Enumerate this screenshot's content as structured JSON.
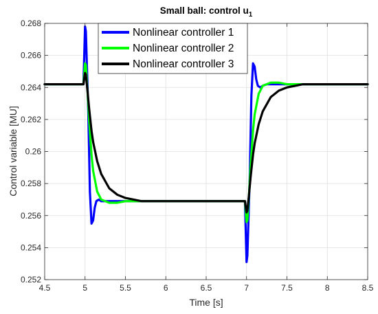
{
  "chart_data": {
    "type": "line",
    "title": "Small ball: control ",
    "title_var": "u",
    "title_sub": "1",
    "xlabel": "Time [s]",
    "ylabel": "Control variable [MU]",
    "xlim": [
      4.5,
      8.5
    ],
    "ylim": [
      0.252,
      0.268
    ],
    "xticks": [
      4.5,
      5,
      5.5,
      6,
      6.5,
      7,
      7.5,
      8,
      8.5
    ],
    "xtick_labels": [
      "4.5",
      "5",
      "5.5",
      "6",
      "6.5",
      "7",
      "7.5",
      "8",
      "8.5"
    ],
    "yticks": [
      0.252,
      0.254,
      0.256,
      0.258,
      0.26,
      0.262,
      0.264,
      0.266,
      0.268
    ],
    "ytick_labels": [
      "0.252",
      "0.254",
      "0.256",
      "0.258",
      "0.26",
      "0.262",
      "0.264",
      "0.266",
      "0.268"
    ],
    "grid": true,
    "legend_position": "top-left",
    "series": [
      {
        "name": "Nonlinear controller 1",
        "color": "#0000ff",
        "x": [
          4.5,
          4.98,
          5.0,
          5.01,
          5.04,
          5.06,
          5.08,
          5.1,
          5.12,
          5.14,
          5.17,
          5.2,
          5.25,
          5.3,
          5.5,
          6.0,
          6.5,
          6.98,
          7.0,
          7.01,
          7.04,
          7.06,
          7.08,
          7.1,
          7.12,
          7.14,
          7.17,
          7.2,
          7.25,
          7.3,
          7.5,
          8.0,
          8.5
        ],
        "y": [
          0.2642,
          0.2642,
          0.2678,
          0.2675,
          0.2625,
          0.2575,
          0.2555,
          0.2557,
          0.2565,
          0.2569,
          0.257,
          0.2569,
          0.2569,
          0.2569,
          0.2569,
          0.2569,
          0.2569,
          0.2569,
          0.2531,
          0.2535,
          0.2585,
          0.2635,
          0.2655,
          0.2653,
          0.2645,
          0.2641,
          0.264,
          0.2641,
          0.2642,
          0.2642,
          0.2642,
          0.2642,
          0.2642
        ]
      },
      {
        "name": "Nonlinear controller 2",
        "color": "#00ff00",
        "x": [
          4.5,
          4.98,
          5.0,
          5.01,
          5.03,
          5.05,
          5.08,
          5.1,
          5.15,
          5.2,
          5.3,
          5.4,
          5.5,
          5.6,
          6.0,
          6.5,
          6.98,
          7.0,
          7.01,
          7.03,
          7.05,
          7.08,
          7.1,
          7.15,
          7.2,
          7.3,
          7.4,
          7.5,
          7.6,
          8.0,
          8.5
        ],
        "y": [
          0.2642,
          0.2642,
          0.2655,
          0.2654,
          0.2638,
          0.262,
          0.2598,
          0.2588,
          0.2575,
          0.257,
          0.2568,
          0.2568,
          0.2569,
          0.2569,
          0.2569,
          0.2569,
          0.2569,
          0.2556,
          0.2557,
          0.2573,
          0.2591,
          0.2613,
          0.2623,
          0.2636,
          0.2641,
          0.2643,
          0.2643,
          0.2642,
          0.2642,
          0.2642,
          0.2642
        ]
      },
      {
        "name": "Nonlinear controller 3",
        "color": "#000000",
        "x": [
          4.5,
          4.98,
          5.0,
          5.01,
          5.03,
          5.05,
          5.08,
          5.1,
          5.15,
          5.2,
          5.3,
          5.4,
          5.5,
          5.6,
          5.7,
          5.8,
          6.0,
          6.5,
          6.98,
          7.0,
          7.01,
          7.03,
          7.05,
          7.08,
          7.1,
          7.15,
          7.2,
          7.3,
          7.4,
          7.5,
          7.6,
          7.7,
          7.8,
          8.0,
          8.5
        ],
        "y": [
          0.2642,
          0.2642,
          0.2649,
          0.2648,
          0.2638,
          0.2627,
          0.2613,
          0.2606,
          0.2594,
          0.2586,
          0.2577,
          0.2573,
          0.2571,
          0.257,
          0.2569,
          0.2569,
          0.2569,
          0.2569,
          0.2569,
          0.2562,
          0.2563,
          0.2573,
          0.2584,
          0.2598,
          0.2605,
          0.2617,
          0.2625,
          0.2634,
          0.2638,
          0.264,
          0.2641,
          0.2642,
          0.2642,
          0.2642,
          0.2642
        ]
      }
    ]
  }
}
